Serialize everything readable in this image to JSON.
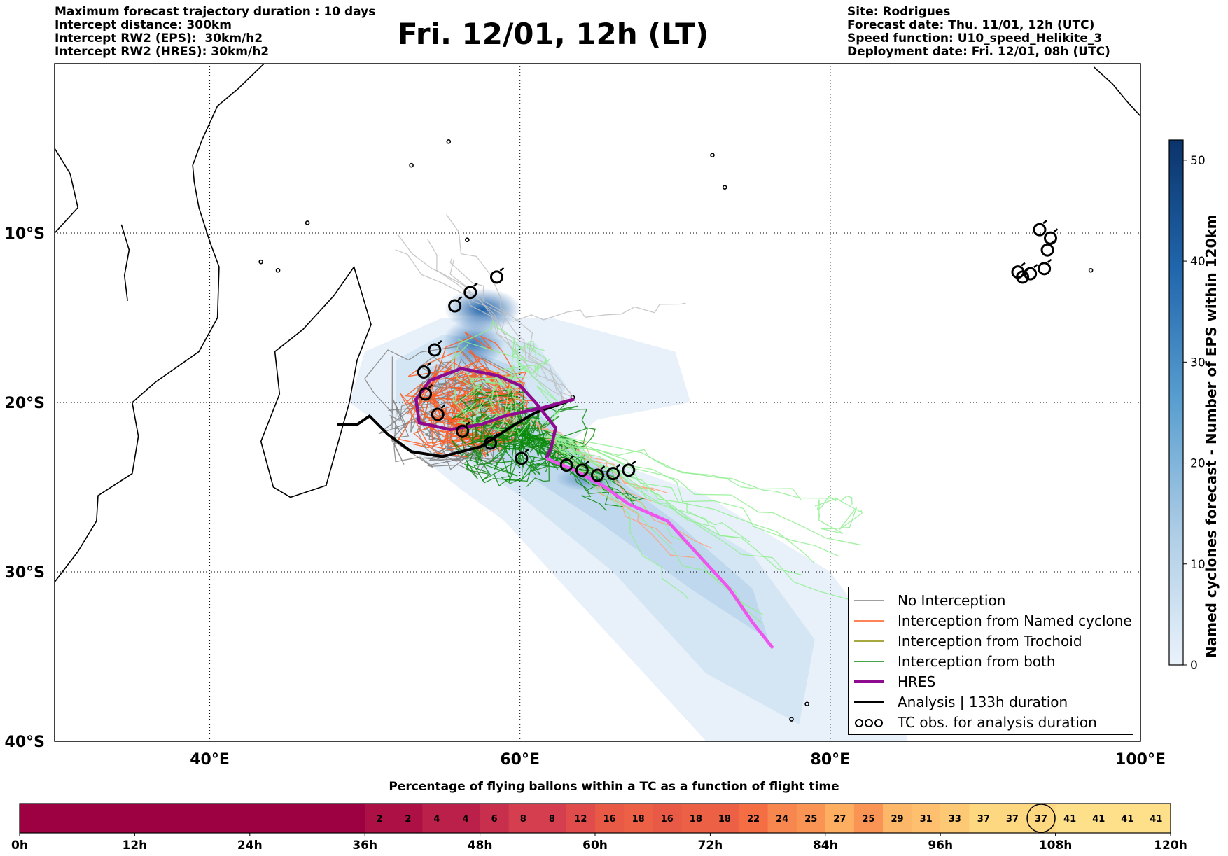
{
  "header": {
    "left_lines": [
      "Maximum forecast trajectory duration : 10 days",
      "Intercept distance: 300km",
      "Intercept RW2 (EPS):  30km/h2",
      "Intercept RW2 (HRES): 30km/h2"
    ],
    "right_lines": [
      "Site: Rodrigues",
      "Forecast date: Thu. 11/01, 12h (UTC)",
      "Speed function: U10_speed_Helikite_3",
      "Deployment date: Fri. 12/01, 08h (UTC)"
    ],
    "title": "Fri. 12/01, 12h (LT)"
  },
  "colors": {
    "no_interception": "#808080",
    "named_cyclone": "#ff5a1e",
    "trochoid": "#8b8b00",
    "both": "#0a8a0a",
    "hres": "#8e0a8e",
    "analysis": "#000000",
    "hres_tail": "#ee55ee",
    "light_green": "#90ee90",
    "salmon": "#ffa07a"
  },
  "chart_data": [
    {
      "type": "map",
      "x_ticks": [
        "40°E",
        "60°E",
        "80°E",
        "100°E"
      ],
      "y_ticks": [
        "10°S",
        "20°S",
        "30°S",
        "40°S"
      ],
      "xlim": [
        30,
        100
      ],
      "ylim": [
        -40,
        0
      ],
      "grid": true,
      "legend_position": "bottom-right",
      "legend": [
        {
          "label": "No Interception",
          "color": "#808080",
          "style": "thin"
        },
        {
          "label": "Interception from Named cyclone",
          "color": "#ff5a1e",
          "style": "thin"
        },
        {
          "label": "Interception from Trochoid",
          "color": "#8b8b00",
          "style": "thin"
        },
        {
          "label": "Interception from both",
          "color": "#0a8a0a",
          "style": "thin"
        },
        {
          "label": "HRES",
          "color": "#8e0a8e",
          "style": "thick"
        },
        {
          "label": "Analysis | 133h duration",
          "color": "#000000",
          "style": "thick"
        },
        {
          "label": "TC obs. for analysis duration",
          "color": "#000000",
          "style": "symbols"
        }
      ],
      "analysis_track": [
        [
          48.2,
          -21.3
        ],
        [
          49.5,
          -21.3
        ],
        [
          50.3,
          -20.8
        ],
        [
          51.5,
          -21.9
        ],
        [
          53,
          -22.9
        ],
        [
          55,
          -23.2
        ],
        [
          57.5,
          -22.6
        ],
        [
          59.5,
          -21.4
        ],
        [
          61,
          -20.6
        ],
        [
          63.5,
          -19.8
        ]
      ],
      "hres_track": [
        [
          63.5,
          -19.8
        ],
        [
          61.5,
          -20.3
        ],
        [
          59,
          -20.8
        ],
        [
          57.5,
          -21.3
        ],
        [
          55.5,
          -21.6
        ],
        [
          53.5,
          -21.2
        ],
        [
          53.3,
          -19.8
        ],
        [
          54.2,
          -18.7
        ],
        [
          56.2,
          -18
        ],
        [
          58.5,
          -18.4
        ],
        [
          60,
          -19
        ],
        [
          61,
          -20
        ],
        [
          62.3,
          -21.5
        ],
        [
          62,
          -22.7
        ],
        [
          61.7,
          -23.3
        ]
      ],
      "hres_tail_track": [
        [
          61.7,
          -23.3
        ],
        [
          63.5,
          -24
        ],
        [
          65.5,
          -25
        ],
        [
          67,
          -26
        ],
        [
          69.5,
          -27
        ],
        [
          70.5,
          -28
        ],
        [
          72,
          -29.5
        ],
        [
          73.5,
          -31
        ],
        [
          75,
          -33
        ],
        [
          76.3,
          -34.5
        ]
      ],
      "tc_obs": [
        [
          54.7,
          -20.7
        ],
        [
          53.9,
          -19.5
        ],
        [
          53.8,
          -18.2
        ],
        [
          54.5,
          -16.9
        ],
        [
          55.8,
          -14.3
        ],
        [
          56.8,
          -13.5
        ],
        [
          58.5,
          -12.6
        ],
        [
          56.3,
          -21.7
        ],
        [
          58.1,
          -22.4
        ],
        [
          60.1,
          -23.3
        ],
        [
          63,
          -23.7
        ],
        [
          64,
          -24
        ],
        [
          65,
          -24.3
        ],
        [
          66,
          -24.2
        ],
        [
          67,
          -24
        ],
        [
          93.5,
          -9.8
        ],
        [
          94.2,
          -10.3
        ],
        [
          94,
          -11
        ],
        [
          93.8,
          -12.1
        ],
        [
          92.9,
          -12.4
        ],
        [
          92.4,
          -12.6
        ],
        [
          92.1,
          -12.3
        ]
      ],
      "colorbar": {
        "label": "Named cyclones forecast - Number of EPS within 120km",
        "ticks": [
          0,
          10,
          20,
          30,
          40,
          50
        ],
        "range": [
          0,
          52
        ]
      }
    },
    {
      "type": "heatmap",
      "title": "Percentage of flying ballons within a TC as a function of flight time",
      "time_ticks": [
        "0h",
        "12h",
        "24h",
        "36h",
        "48h",
        "60h",
        "72h",
        "84h",
        "96h",
        "108h",
        "120h"
      ],
      "values": [
        0,
        0,
        0,
        0,
        0,
        0,
        0,
        0,
        0,
        0,
        0,
        0,
        2,
        2,
        4,
        4,
        6,
        8,
        8,
        12,
        16,
        18,
        16,
        18,
        18,
        22,
        24,
        25,
        27,
        25,
        29,
        31,
        33,
        37,
        37,
        37,
        41,
        41,
        41,
        41
      ],
      "highlighted_index": 35,
      "step_hours": 3
    }
  ]
}
